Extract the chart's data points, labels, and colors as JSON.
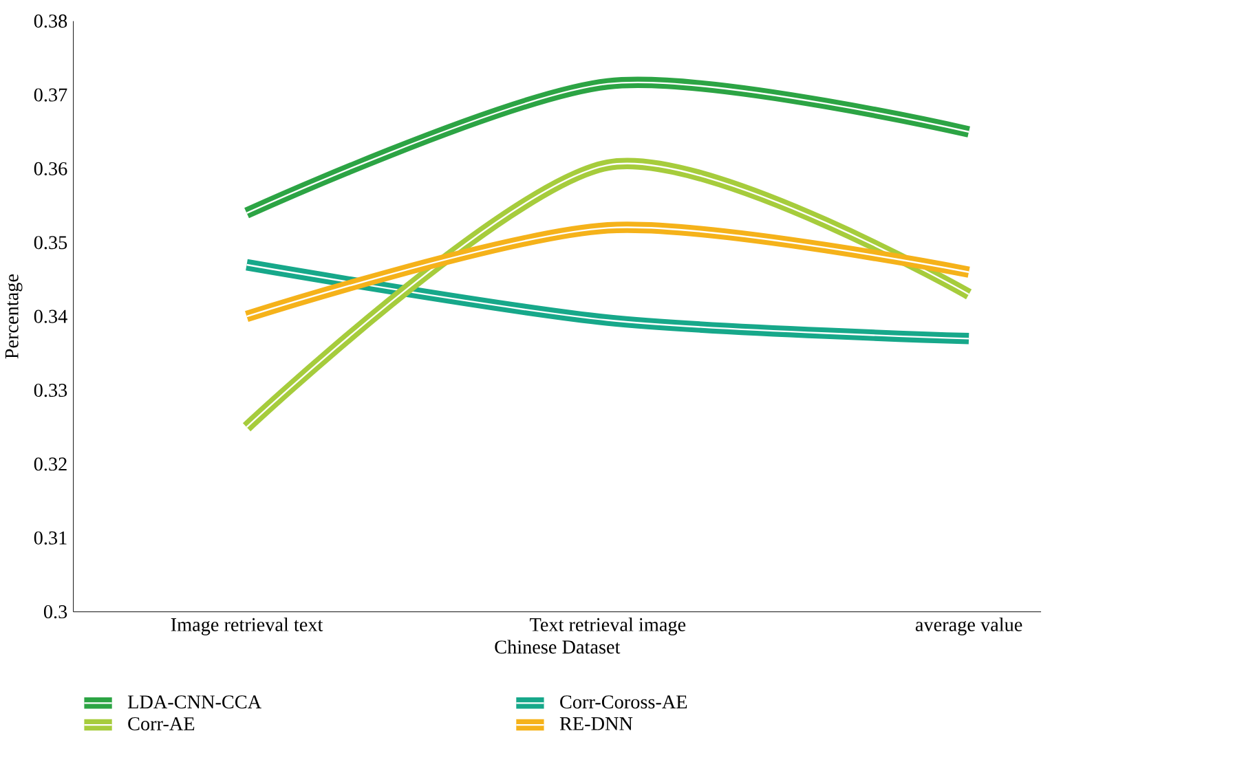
{
  "chart_data": {
    "type": "line",
    "xlabel": "Chinese Dataset",
    "ylabel": "Percentage",
    "categories": [
      "Image retrieval text",
      "Text retrieval image",
      "average value"
    ],
    "series": [
      {
        "name": "LDA-CNN-CCA",
        "color": "#2ca444",
        "values": [
          0.354,
          0.3715,
          0.365
        ]
      },
      {
        "name": "Corr-Coross-AE",
        "color": "#17a88a",
        "values": [
          0.347,
          0.3395,
          0.337
        ]
      },
      {
        "name": "Corr-AE",
        "color": "#a6cc3c",
        "values": [
          0.325,
          0.3605,
          0.343
        ]
      },
      {
        "name": "RE-DNN",
        "color": "#f5b21a",
        "values": [
          0.34,
          0.352,
          0.346
        ]
      }
    ],
    "ylim": [
      0.3,
      0.38
    ],
    "yticks": [
      0.3,
      0.31,
      0.32,
      0.33,
      0.34,
      0.35,
      0.36,
      0.37,
      0.38
    ],
    "grid": false,
    "legend": "bottom",
    "line_style": "solid"
  }
}
